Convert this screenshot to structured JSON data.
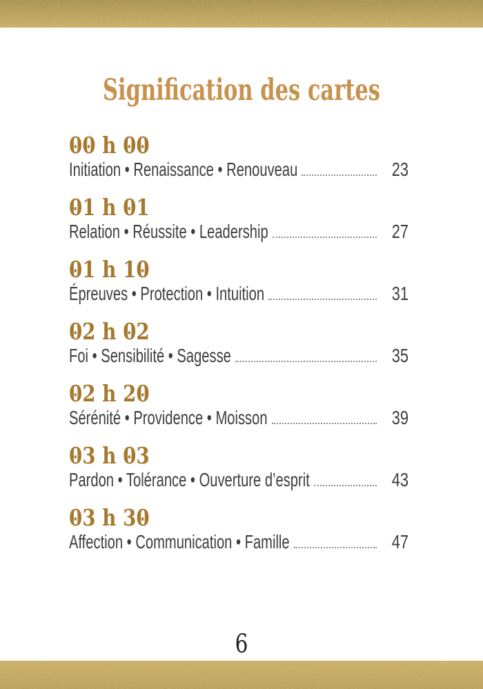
{
  "theme": {
    "page_bg": "#ffffff",
    "band_gold": "#b3974a",
    "title_gold": "#c8924e",
    "time_gold": "#a5792e",
    "text_color": "#3d3d3d",
    "leader_color": "#8a8a8a",
    "folio_color": "#222222"
  },
  "page": {
    "title": "Signification des cartes",
    "folio": "6"
  },
  "toc": {
    "separator": " • ",
    "entries": [
      {
        "time": "00 h 00",
        "keywords": [
          "Initiation",
          "Renaissance",
          "Renouveau"
        ],
        "page": "23"
      },
      {
        "time": "01 h 01",
        "keywords": [
          "Relation",
          "Réussite",
          "Leadership"
        ],
        "page": "27"
      },
      {
        "time": "01 h 10",
        "keywords": [
          "Épreuves",
          "Protection",
          "Intuition"
        ],
        "page": "31"
      },
      {
        "time": "02 h 02",
        "keywords": [
          "Foi",
          "Sensibilité",
          "Sagesse"
        ],
        "page": "35"
      },
      {
        "time": "02 h 20",
        "keywords": [
          "Sérénité",
          "Providence",
          "Moisson"
        ],
        "page": "39"
      },
      {
        "time": "03 h 03",
        "keywords": [
          "Pardon",
          "Tolérance",
          "Ouverture d’esprit"
        ],
        "page": "43"
      },
      {
        "time": "03 h 30",
        "keywords": [
          "Affection",
          "Communication",
          "Famille"
        ],
        "page": "47"
      }
    ]
  }
}
